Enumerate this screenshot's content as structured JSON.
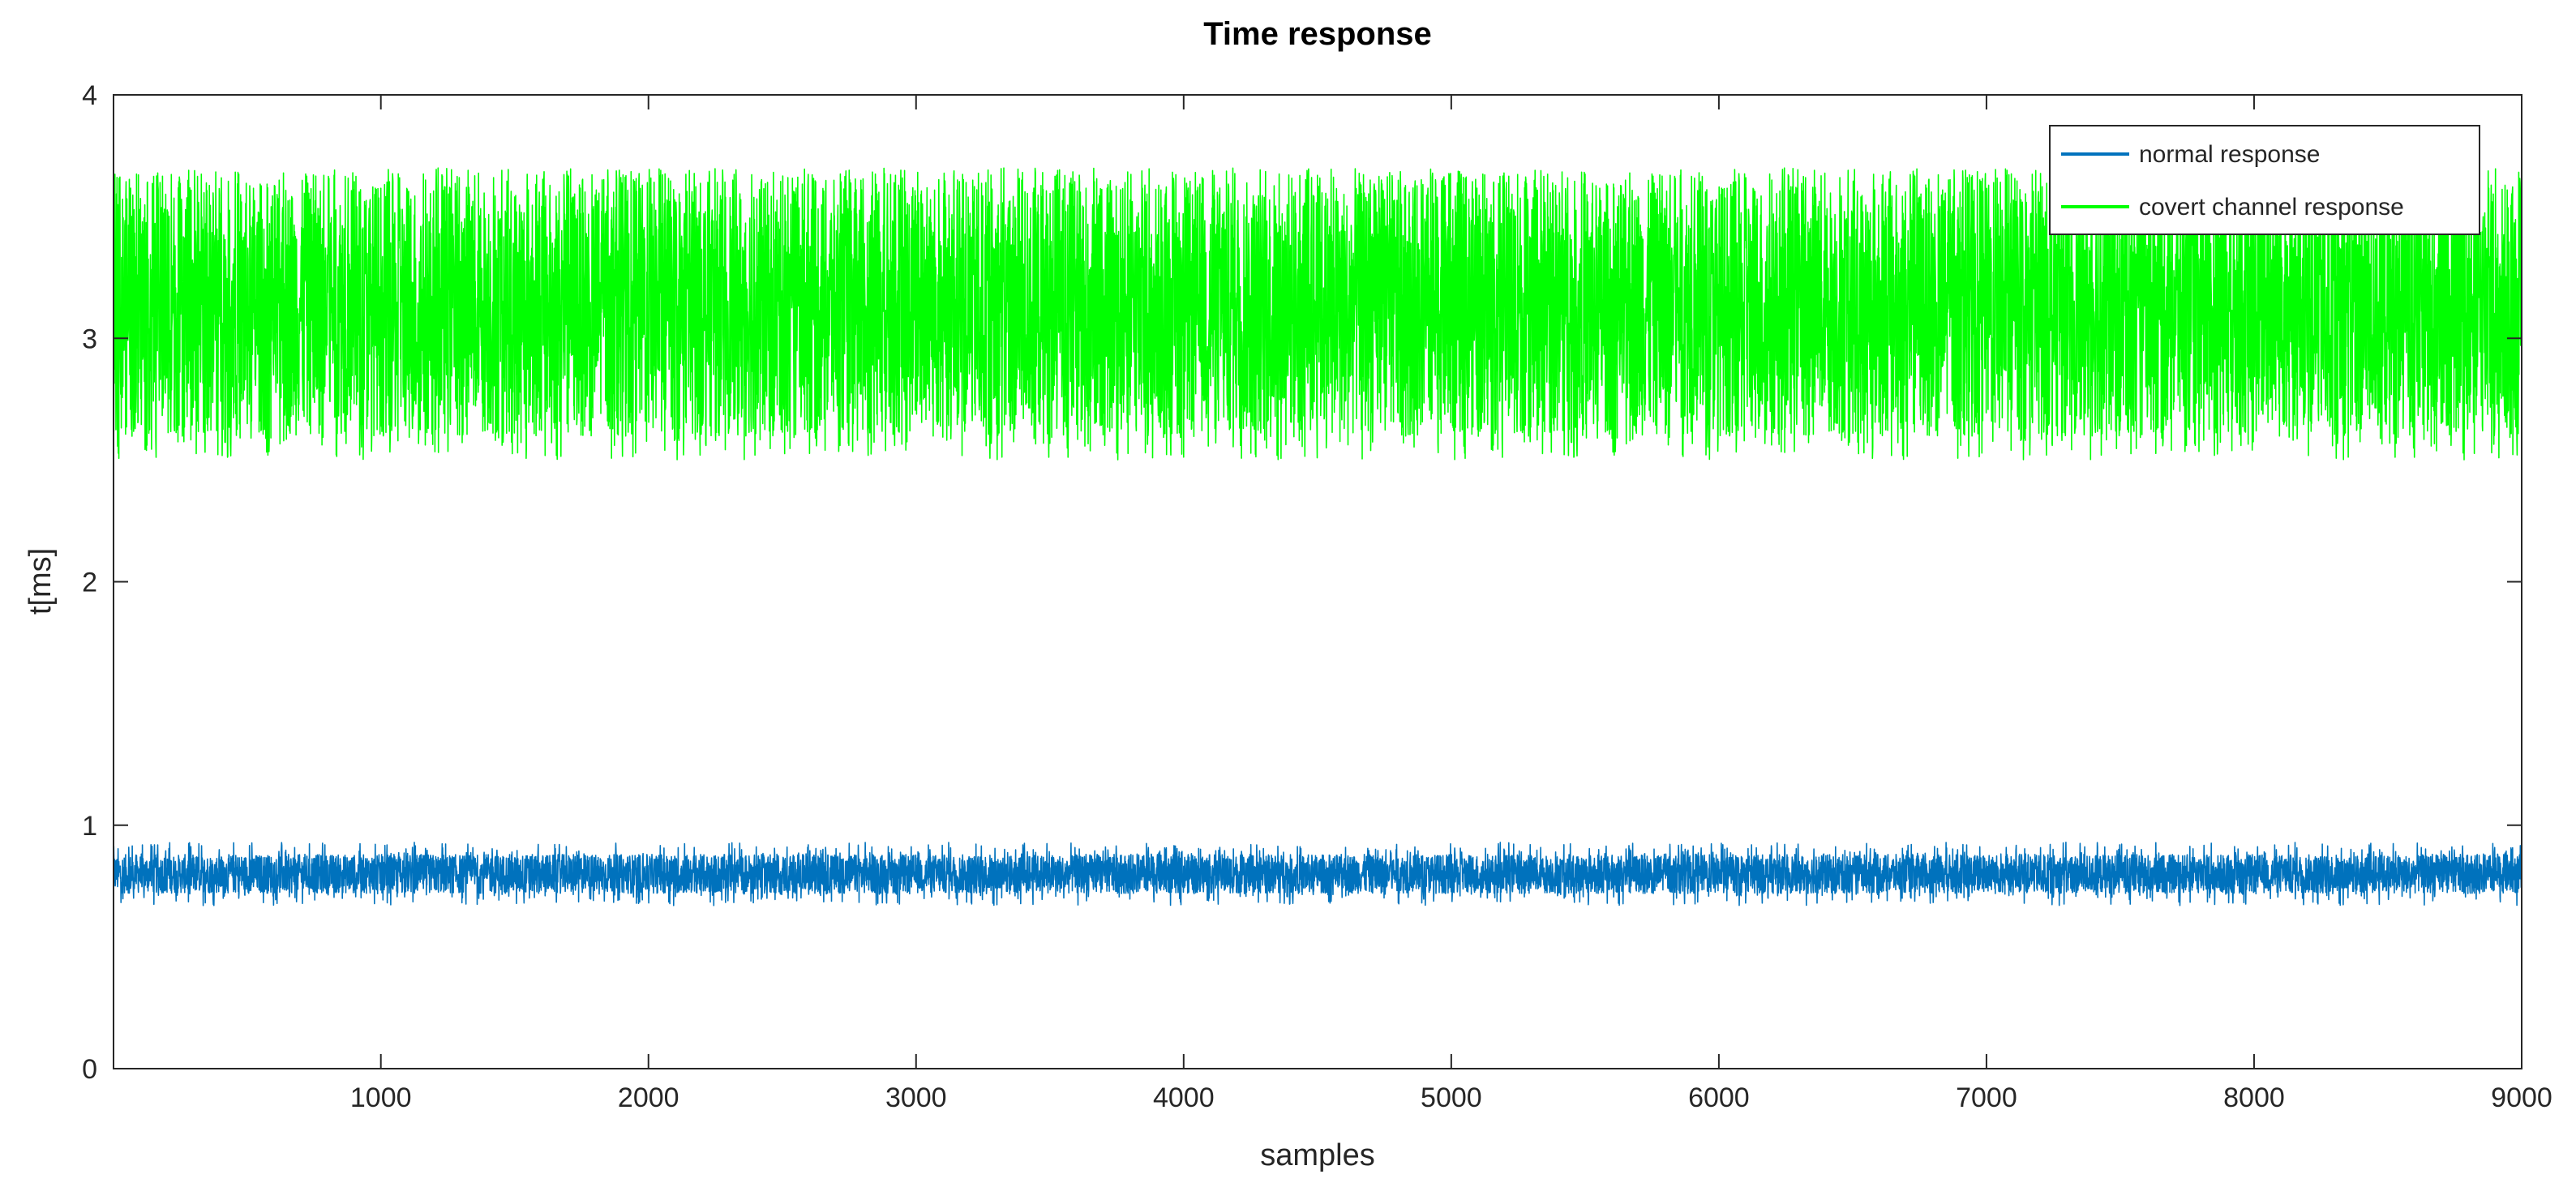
{
  "chart_data": {
    "type": "line",
    "title": "Time response",
    "xlabel": "samples",
    "ylabel": "t[ms]",
    "xlim": [
      1,
      9000
    ],
    "ylim": [
      0,
      4
    ],
    "xticks": [
      1000,
      2000,
      3000,
      4000,
      5000,
      6000,
      7000,
      8000,
      9000
    ],
    "yticks": [
      0,
      1,
      2,
      3,
      4
    ],
    "grid": false,
    "legend_position": "top-right",
    "series": [
      {
        "name": "normal response",
        "color": "#0072BD",
        "n_samples": 9000,
        "min": 0.67,
        "max": 0.93,
        "typical_range": [
          0.72,
          0.88
        ]
      },
      {
        "name": "covert channel response",
        "color": "#00FF00",
        "n_samples": 9000,
        "min": 2.5,
        "max": 3.7,
        "typical_range": [
          2.6,
          3.65
        ]
      }
    ]
  }
}
